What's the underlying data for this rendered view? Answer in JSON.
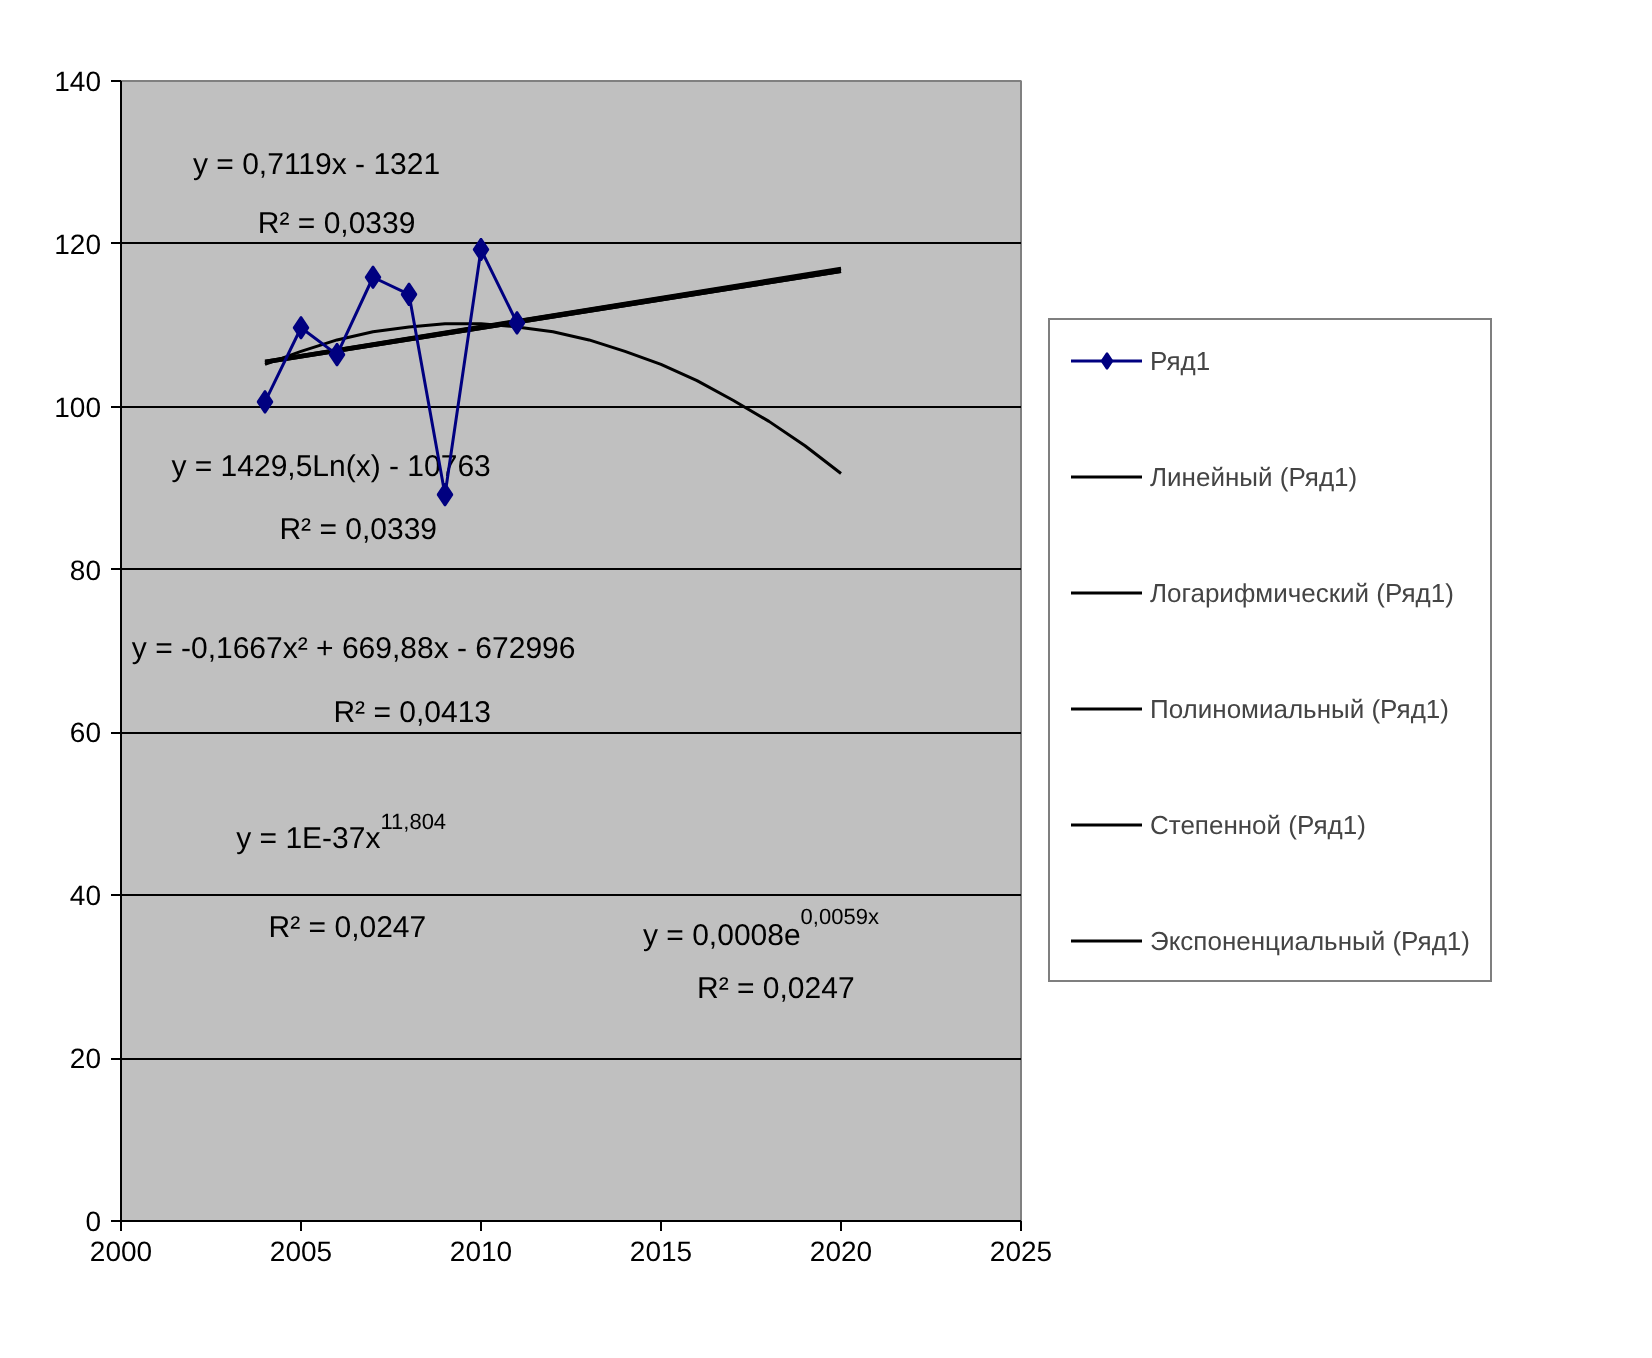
{
  "chart_data": {
    "type": "line",
    "xlim": [
      2000,
      2025
    ],
    "xticks": [
      2000,
      2005,
      2010,
      2015,
      2020,
      2025
    ],
    "ylim": [
      0,
      140
    ],
    "yticks": [
      0,
      20,
      40,
      60,
      80,
      100,
      120,
      140
    ],
    "grid": "y",
    "legend": "right",
    "marker": "diamond",
    "line_style": "solid",
    "series": [
      {
        "name": "Ряд1",
        "color": "#000080",
        "x": [
          2004,
          2005,
          2006,
          2007,
          2008,
          2009,
          2010,
          2011
        ],
        "values": [
          100.6,
          109.7,
          106.4,
          115.9,
          113.8,
          89.2,
          119.3,
          110.3
        ]
      },
      {
        "name": "Линейный (Ряд1)",
        "color": "#000000",
        "marker": "none",
        "x": [
          2004,
          2020
        ],
        "values": [
          105.6,
          117.0
        ]
      },
      {
        "name": "Логарифмический (Ряд1)",
        "color": "#000000",
        "marker": "none",
        "x": [
          2004,
          2020
        ],
        "values": [
          105.6,
          116.9
        ]
      },
      {
        "name": "Полиномиальный (Ряд1)",
        "color": "#000000",
        "marker": "none",
        "x": [
          2004,
          2005,
          2006,
          2007,
          2008,
          2009,
          2010,
          2011,
          2012,
          2013,
          2014,
          2015,
          2016,
          2017,
          2018,
          2019,
          2020
        ],
        "values": [
          105.2,
          106.8,
          108.2,
          109.2,
          109.8,
          110.2,
          110.2,
          109.8,
          109.2,
          108.2,
          106.8,
          105.2,
          103.2,
          100.8,
          98.2,
          95.2,
          91.8
        ]
      },
      {
        "name": "Степенной (Ряд1)",
        "color": "#000000",
        "marker": "none",
        "x": [
          2004,
          2020
        ],
        "values": [
          105.4,
          116.6
        ]
      },
      {
        "name": "Экспоненциальный (Ряд1)",
        "color": "#000000",
        "marker": "none",
        "x": [
          2004,
          2020
        ],
        "values": [
          105.4,
          116.6
        ]
      }
    ],
    "annotations": [
      "y = 0,7119x - 1321",
      "R² = 0,0339",
      "y = 1429,5Ln(x) - 10763",
      "R² = 0,0339",
      "y = -0,1667x² + 669,88x - 672996",
      "R² = 0,0413",
      "y = 1E-37x$^{11,804}$",
      "R² = 0,0247",
      "y = 0,0008e$^{0,0059x}$",
      "R² = 0,0247"
    ]
  }
}
